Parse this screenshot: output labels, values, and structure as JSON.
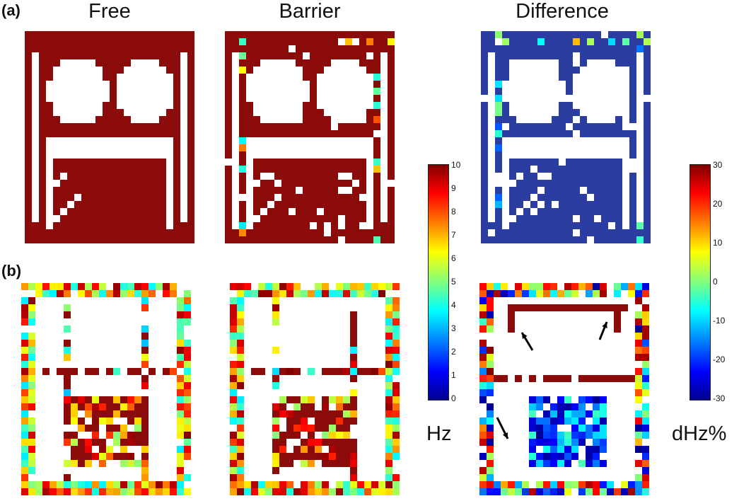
{
  "panel_labels": [
    "(a)",
    "(b)"
  ],
  "column_titles": [
    "Free",
    "Barrier",
    "Difference"
  ],
  "colorbars": [
    {
      "unit": "Hz",
      "ticks": [
        "10",
        "9",
        "8",
        "7",
        "6",
        "5",
        "4",
        "3",
        "2",
        "1",
        "0"
      ],
      "range": [
        0,
        10
      ]
    },
    {
      "unit": "dHz%",
      "ticks": [
        "30",
        "20",
        "10",
        "0",
        "-10",
        "-20",
        "-30"
      ],
      "range": [
        -30,
        30
      ]
    }
  ],
  "colors": {
    "dark_red": "#8b0b0b",
    "dark_blue": "#2b3da0",
    "background": "#ffffff"
  },
  "annotations": [
    "arrow-1",
    "arrow-2",
    "arrow-3"
  ]
}
